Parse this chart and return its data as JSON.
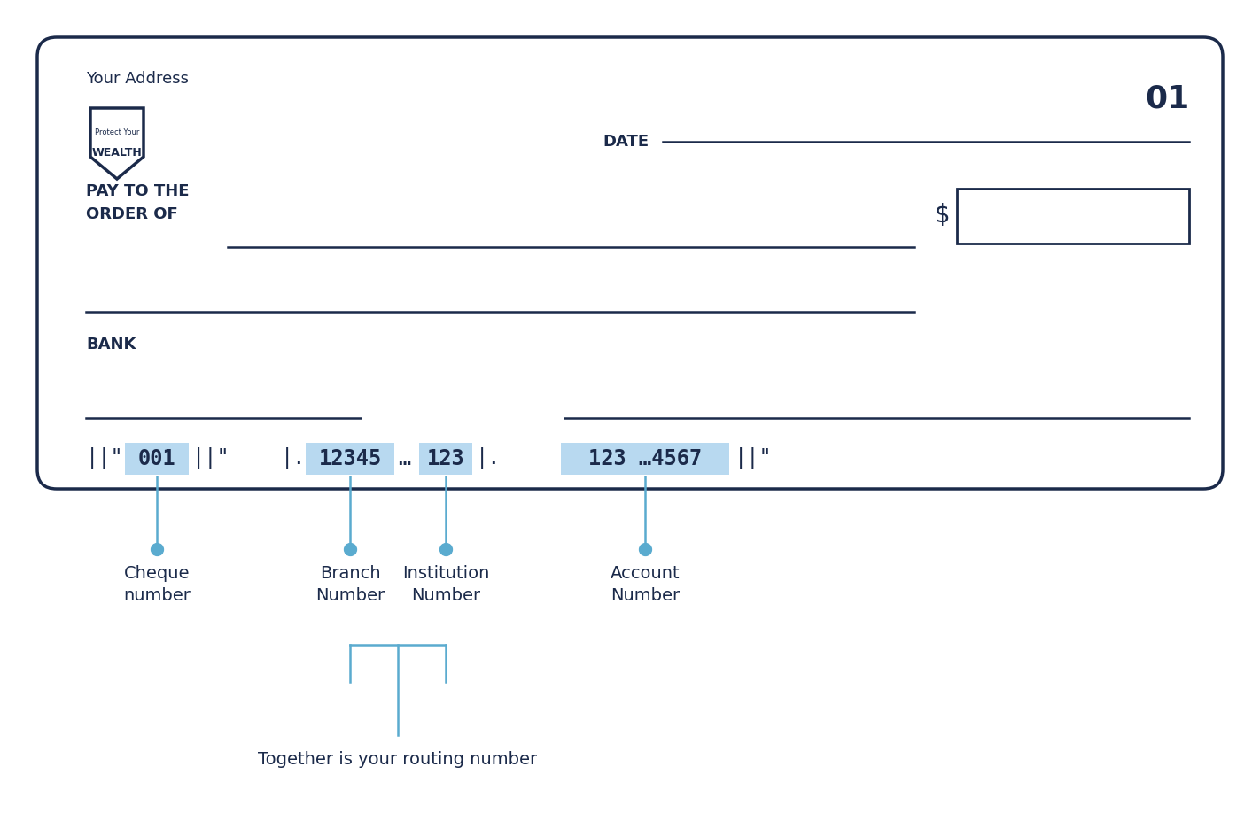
{
  "bg_color": "#ffffff",
  "cheque_bg": "#ffffff",
  "cheque_border_color": "#1b2a4a",
  "dark_navy": "#1b2a4a",
  "light_blue": "#b8d9f0",
  "connector_blue": "#5aabcf",
  "address_text": "Your Address",
  "cheque_number": "01",
  "date_label": "DATE",
  "pay_to_label": "PAY TO THE\nORDER OF",
  "dollar_sign": "$",
  "bank_label": "BANK",
  "cheque_number_label": "Cheque\nnumber",
  "branch_number_label": "Branch\nNumber",
  "institution_number_label": "Institution\nNumber",
  "account_number_label": "Account\nNumber",
  "routing_label": "Together is your routing number",
  "logo_text_small": "Protect Your",
  "logo_text_large": "WEALTH"
}
